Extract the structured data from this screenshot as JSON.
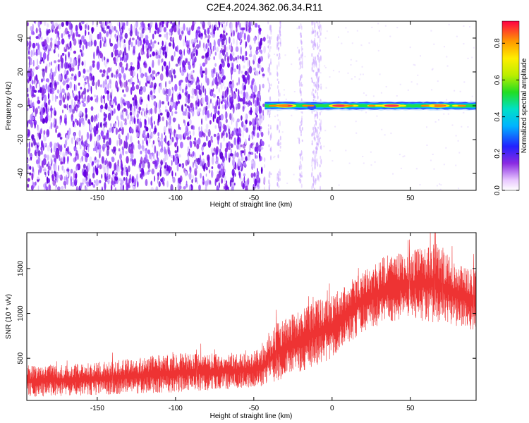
{
  "title": "C2E4.2024.362.06.34.R11",
  "chart_data": [
    {
      "type": "heatmap",
      "xlabel": "Height of straight line (km)",
      "ylabel": "Frequency (Hz)",
      "xlim": [
        -195,
        92
      ],
      "ylim": [
        -50,
        50
      ],
      "xticks": [
        -150,
        -100,
        -50,
        0,
        50
      ],
      "yticks": [
        -40,
        -20,
        0,
        20,
        40
      ],
      "colorbar": {
        "label": "Normalized spectral amplitude",
        "range": [
          0,
          0.92
        ],
        "ticks": [
          0.0,
          0.2,
          0.4,
          0.6,
          0.8
        ]
      },
      "regions": [
        {
          "x": [
            -195,
            -43
          ],
          "frequency": [
            -50,
            50
          ],
          "pattern": "dense purple speckle",
          "amplitude": [
            0.05,
            0.15
          ]
        },
        {
          "x": [
            -43,
            92
          ],
          "frequency": [
            -2.5,
            2.5
          ],
          "pattern": "narrow band centred on 0 Hz",
          "amplitude": [
            0.2,
            0.9
          ]
        }
      ],
      "band_peaks": [
        {
          "x": -30,
          "amplitude": 0.85
        },
        {
          "x": 5,
          "amplitude": 0.9
        },
        {
          "x": 38,
          "amplitude": 0.9
        },
        {
          "x": 68,
          "amplitude": 0.88
        }
      ]
    },
    {
      "type": "line",
      "xlabel": "Height of straight line (km)",
      "ylabel": "SNR (10 * v/v)",
      "xlim": [
        -195,
        92
      ],
      "ylim": [
        30,
        1900
      ],
      "xticks": [
        -150,
        -100,
        -50,
        0,
        50
      ],
      "yticks": [
        500,
        1000,
        1500
      ],
      "color": "#ee3333",
      "envelope": {
        "x": [
          -195,
          -150,
          -100,
          -60,
          -45,
          -35,
          -20,
          -10,
          0,
          10,
          20,
          35,
          50,
          65,
          80,
          92
        ],
        "lower": [
          70,
          90,
          120,
          160,
          190,
          250,
          350,
          420,
          500,
          650,
          800,
          900,
          930,
          900,
          850,
          800
        ],
        "upper": [
          420,
          450,
          560,
          560,
          600,
          900,
          1050,
          1150,
          1200,
          1350,
          1500,
          1650,
          1700,
          1800,
          1550,
          1500
        ]
      }
    }
  ]
}
